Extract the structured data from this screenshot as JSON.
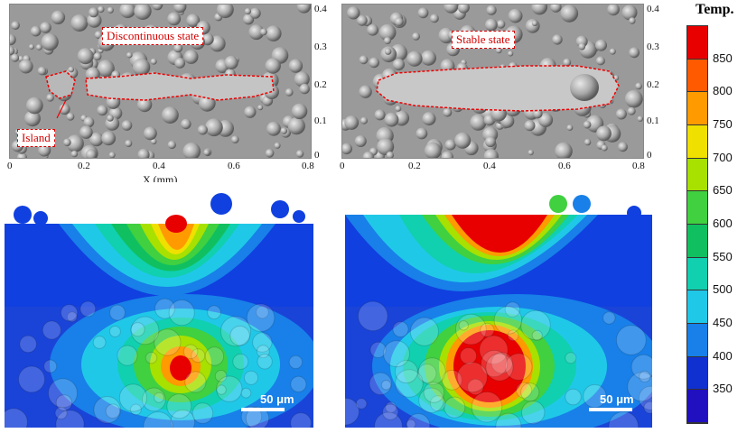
{
  "top_left": {
    "label_discontinuous": "Discontinuous state",
    "label_island": "Island",
    "x_axis_label": "X (mm)",
    "x_ticks": [
      "0",
      "0.2",
      "0.4",
      "0.6",
      "0.8"
    ],
    "y_ticks": [
      "0",
      "0.1",
      "0.2",
      "0.3",
      "0.4"
    ]
  },
  "top_right": {
    "label_stable": "Stable state",
    "x_ticks": [
      "0",
      "0.2",
      "0.4",
      "0.6",
      "0.8"
    ],
    "y_ticks": [
      "0",
      "0.1",
      "0.2",
      "0.3",
      "0.4"
    ]
  },
  "bottom_left": {
    "scale_bar": "50 μm"
  },
  "bottom_right": {
    "scale_bar": "50 μm"
  },
  "legend": {
    "title": "Temp.",
    "values": [
      "850",
      "800",
      "750",
      "700",
      "650",
      "600",
      "550",
      "500",
      "450",
      "400",
      "350"
    ],
    "colors": [
      "#e80000",
      "#ff5a00",
      "#ff9a00",
      "#f0e000",
      "#a8e000",
      "#40d040",
      "#10c060",
      "#10d0b0",
      "#20c8e8",
      "#1880e8",
      "#1030d0",
      "#2010c0"
    ]
  }
}
